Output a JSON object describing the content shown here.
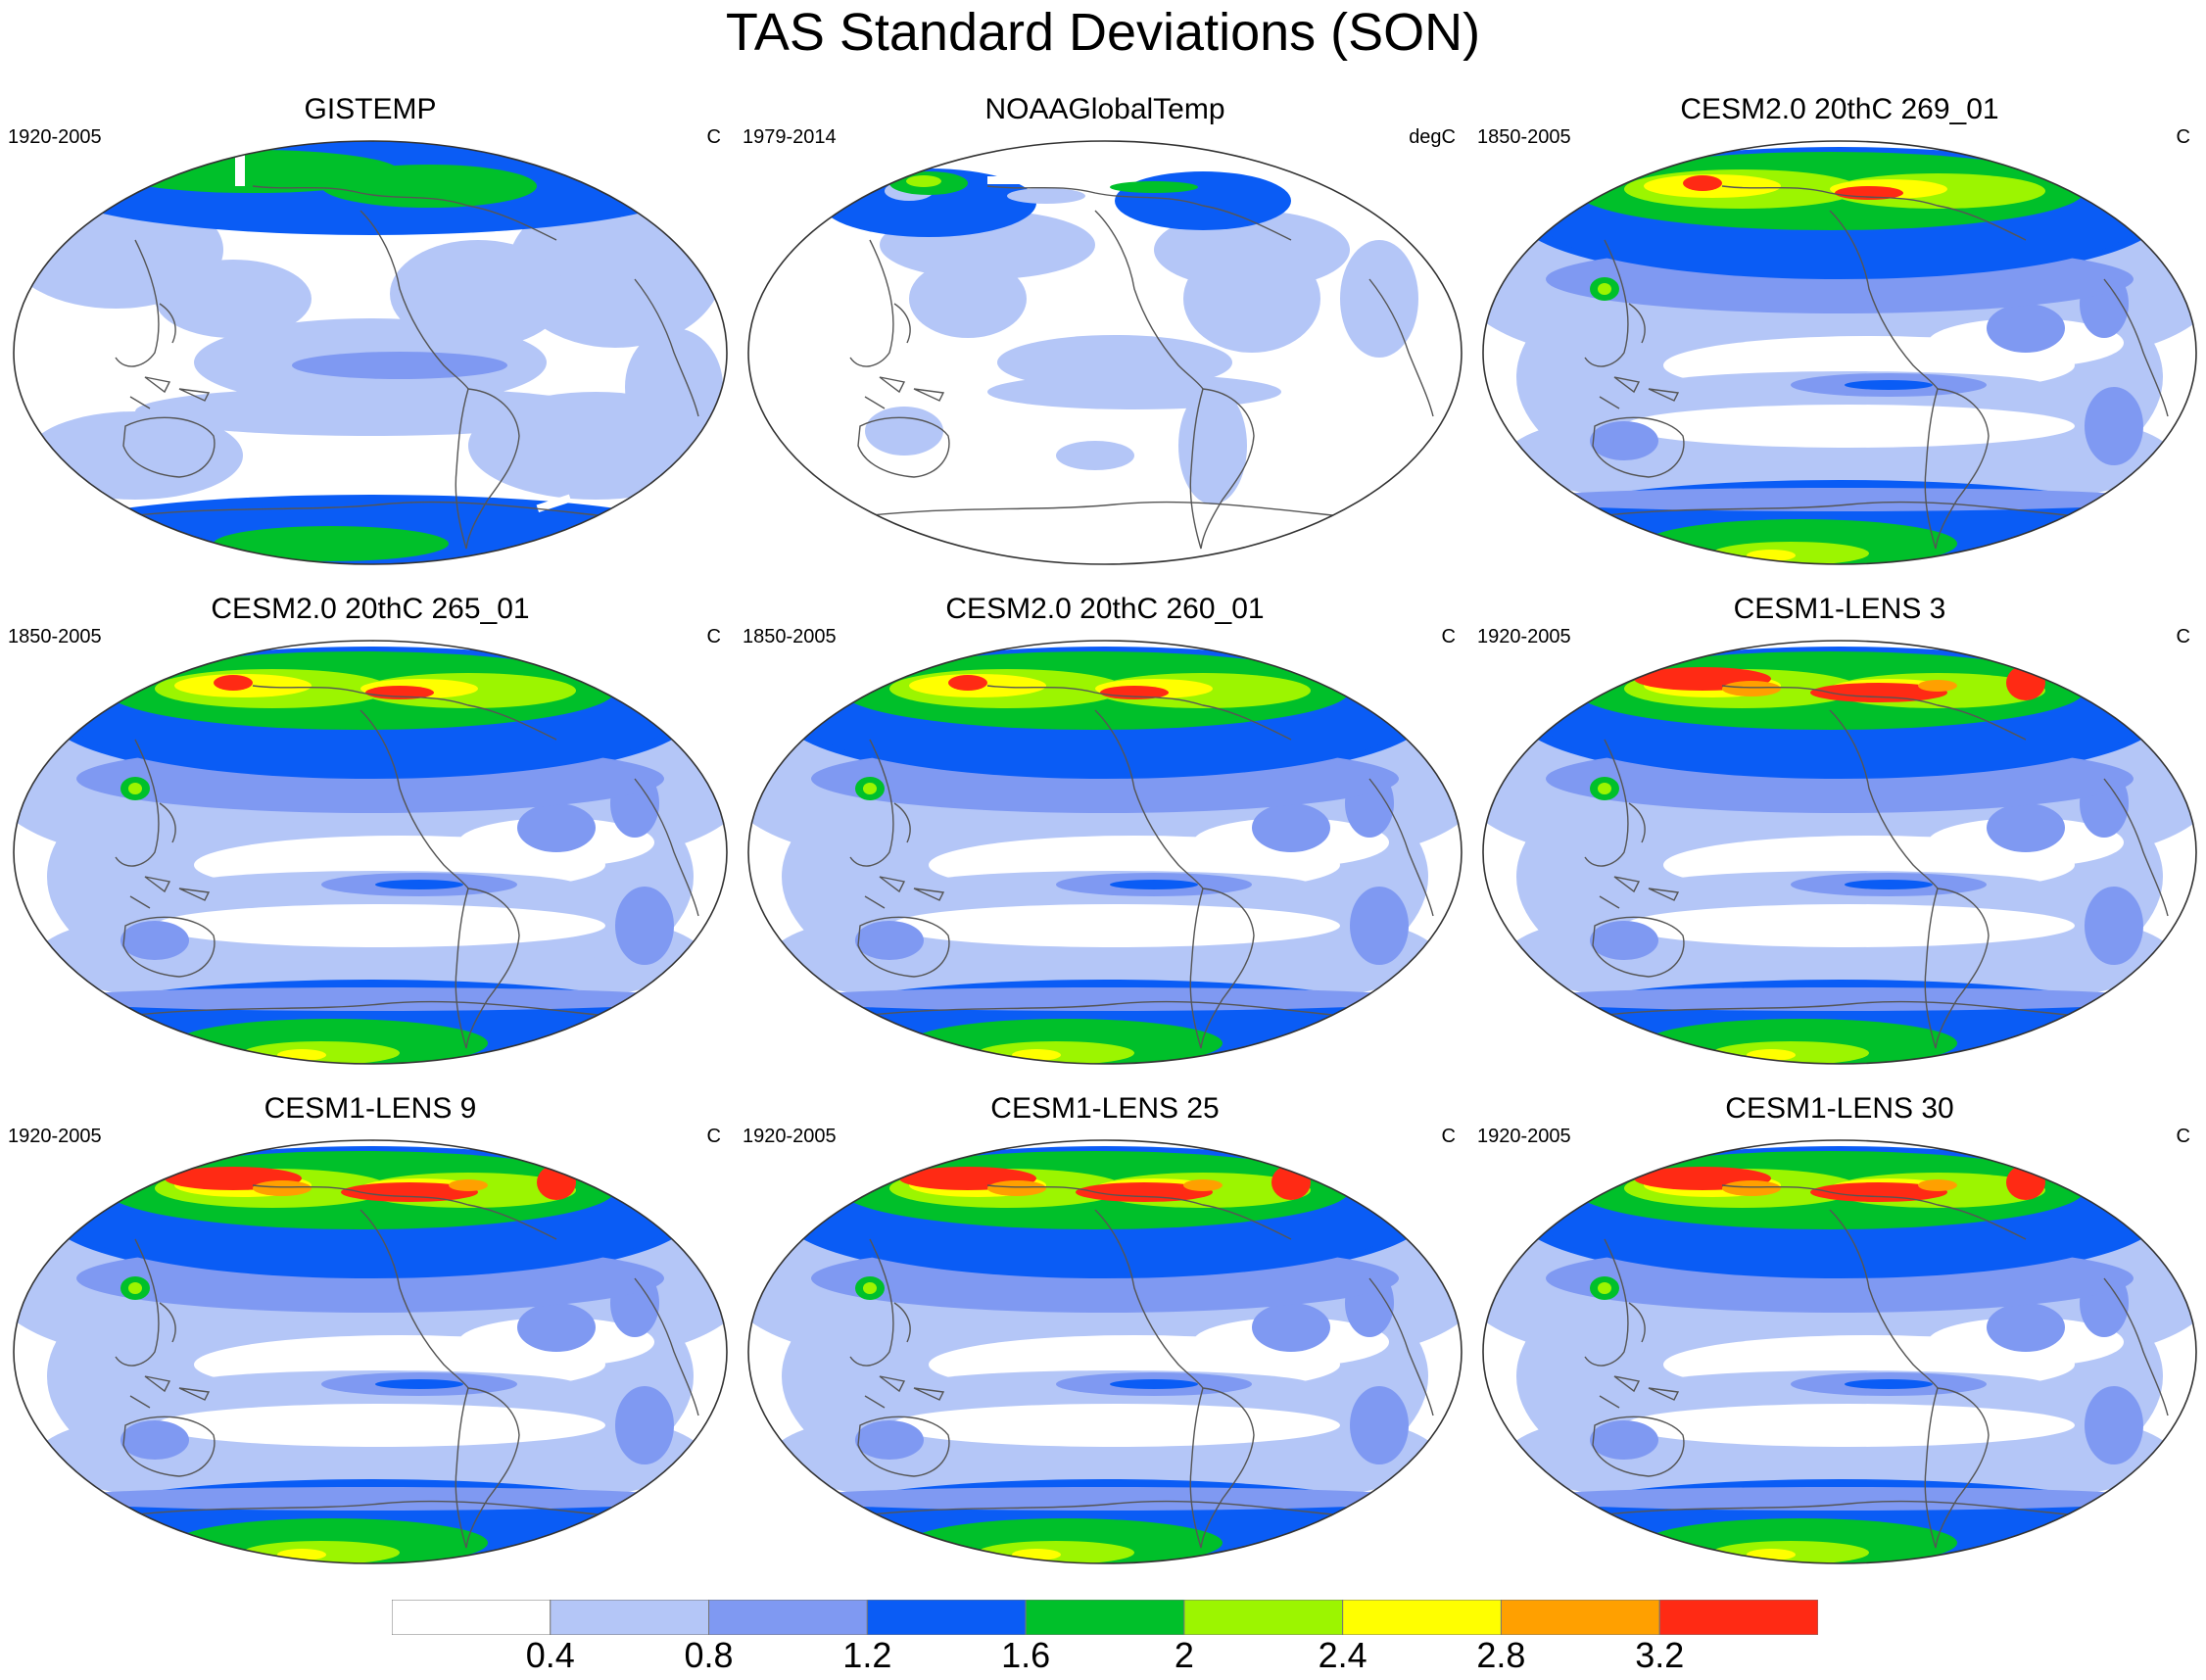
{
  "title": "TAS Standard Deviations (SON)",
  "panels": [
    {
      "title": "GISTEMP",
      "period": "1920-2005",
      "units": "C",
      "style": "gistemp"
    },
    {
      "title": "NOAAGlobalTemp",
      "period": "1979-2014",
      "units": "degC",
      "style": "noaa"
    },
    {
      "title": "CESM2.0 20thC 269_01",
      "period": "1850-2005",
      "units": "C",
      "style": "model"
    },
    {
      "title": "CESM2.0 20thC 265_01",
      "period": "1850-2005",
      "units": "C",
      "style": "model"
    },
    {
      "title": "CESM2.0 20thC 260_01",
      "period": "1850-2005",
      "units": "C",
      "style": "model"
    },
    {
      "title": "CESM1-LENS 3",
      "period": "1920-2005",
      "units": "C",
      "style": "lens"
    },
    {
      "title": "CESM1-LENS 9",
      "period": "1920-2005",
      "units": "C",
      "style": "lens"
    },
    {
      "title": "CESM1-LENS 25",
      "period": "1920-2005",
      "units": "C",
      "style": "lens"
    },
    {
      "title": "CESM1-LENS 30",
      "period": "1920-2005",
      "units": "C",
      "style": "lens"
    }
  ],
  "colorbar": {
    "labels": [
      "0.4",
      "0.8",
      "1.2",
      "1.6",
      "2",
      "2.4",
      "2.8",
      "3.2"
    ],
    "colors": [
      "#ffffff",
      "#b4c6f7",
      "#7f99f2",
      "#0a5cf5",
      "#00c02a",
      "#9cf500",
      "#ffff00",
      "#ffa000",
      "#ff2a14"
    ]
  }
}
